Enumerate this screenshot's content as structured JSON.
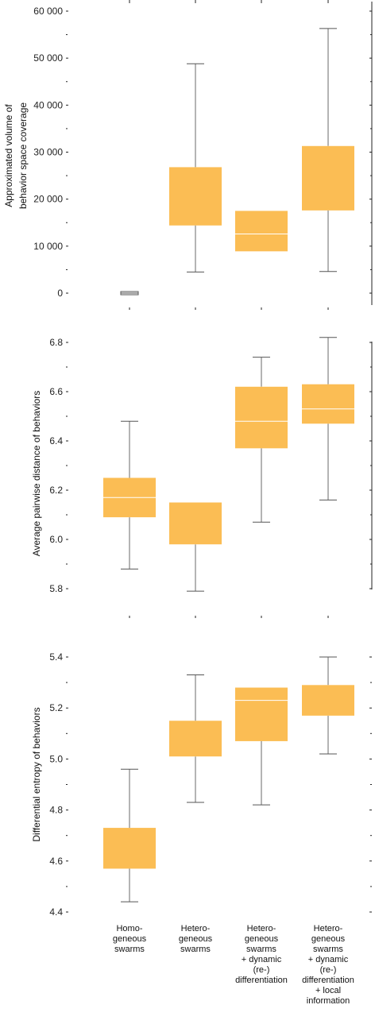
{
  "categories": [
    [
      "Homo-",
      "geneous",
      "swarms"
    ],
    [
      "Hetero-",
      "geneous",
      "swarms"
    ],
    [
      "Hetero-",
      "geneous",
      "swarms",
      "+ dynamic",
      "(re-)",
      "differentiation"
    ],
    [
      "Hetero-",
      "geneous",
      "swarms",
      "+ dynamic",
      "(re-)",
      "differentiation",
      "+ local",
      "information"
    ]
  ],
  "colors": {
    "box": "#fbbd54",
    "median": "#ffffff",
    "whisker": "#6a6a6a"
  },
  "chart_data": [
    {
      "type": "box",
      "ylabel": "Approximated volume of\nbehavior space coverage",
      "ylim": [
        0,
        60000
      ],
      "yticks": [
        0,
        10000,
        20000,
        30000,
        40000,
        50000,
        60000
      ],
      "ytick_labels": [
        "0",
        "10 000",
        "20 000",
        "30 000",
        "40 000",
        "50 000",
        "60 000"
      ],
      "boxes": [
        {
          "whisker_low": 0,
          "q1": 0,
          "median": 0,
          "q3": 0,
          "whisker_high": 0
        },
        {
          "whisker_low": 4500,
          "q1": 14400,
          "median": null,
          "q3": 26800,
          "whisker_high": 48800
        },
        {
          "whisker_low": null,
          "q1": 8900,
          "median": 12600,
          "q3": 17500,
          "whisker_high": null
        },
        {
          "whisker_low": 4600,
          "q1": 17600,
          "median": null,
          "q3": 31300,
          "whisker_high": 56300
        }
      ]
    },
    {
      "type": "box",
      "ylabel": "Average pairwise distance of behaviors",
      "ylim": [
        5.8,
        6.8
      ],
      "yticks": [
        5.8,
        6.0,
        6.2,
        6.4,
        6.6,
        6.8
      ],
      "ytick_labels": [
        "5.8",
        "6.0",
        "6.2",
        "6.4",
        "6.6",
        "6.8"
      ],
      "boxes": [
        {
          "whisker_low": 5.88,
          "q1": 6.09,
          "median": 6.17,
          "q3": 6.25,
          "whisker_high": 6.48
        },
        {
          "whisker_low": 5.79,
          "q1": 5.98,
          "median": null,
          "q3": 6.15,
          "whisker_high": null
        },
        {
          "whisker_low": 6.07,
          "q1": 6.37,
          "median": 6.48,
          "q3": 6.62,
          "whisker_high": 6.74
        },
        {
          "whisker_low": 6.16,
          "q1": 6.47,
          "median": 6.53,
          "q3": 6.63,
          "whisker_high": 6.82
        }
      ]
    },
    {
      "type": "box",
      "ylabel": "Differential entropy of behaviors",
      "ylim": [
        4.4,
        5.4
      ],
      "yticks": [
        4.4,
        4.6,
        4.8,
        5.0,
        5.2,
        5.4
      ],
      "ytick_labels": [
        "4.4",
        "4.6",
        "4.8",
        "5.0",
        "5.2",
        "5.4"
      ],
      "boxes": [
        {
          "whisker_low": 4.44,
          "q1": 4.57,
          "median": null,
          "q3": 4.73,
          "whisker_high": 4.96
        },
        {
          "whisker_low": 4.83,
          "q1": 5.01,
          "median": null,
          "q3": 5.15,
          "whisker_high": 5.33
        },
        {
          "whisker_low": 4.82,
          "q1": 5.07,
          "median": 5.23,
          "q3": 5.28,
          "whisker_high": null
        },
        {
          "whisker_low": 5.02,
          "q1": 5.17,
          "median": null,
          "q3": 5.29,
          "whisker_high": 5.4
        }
      ]
    }
  ]
}
